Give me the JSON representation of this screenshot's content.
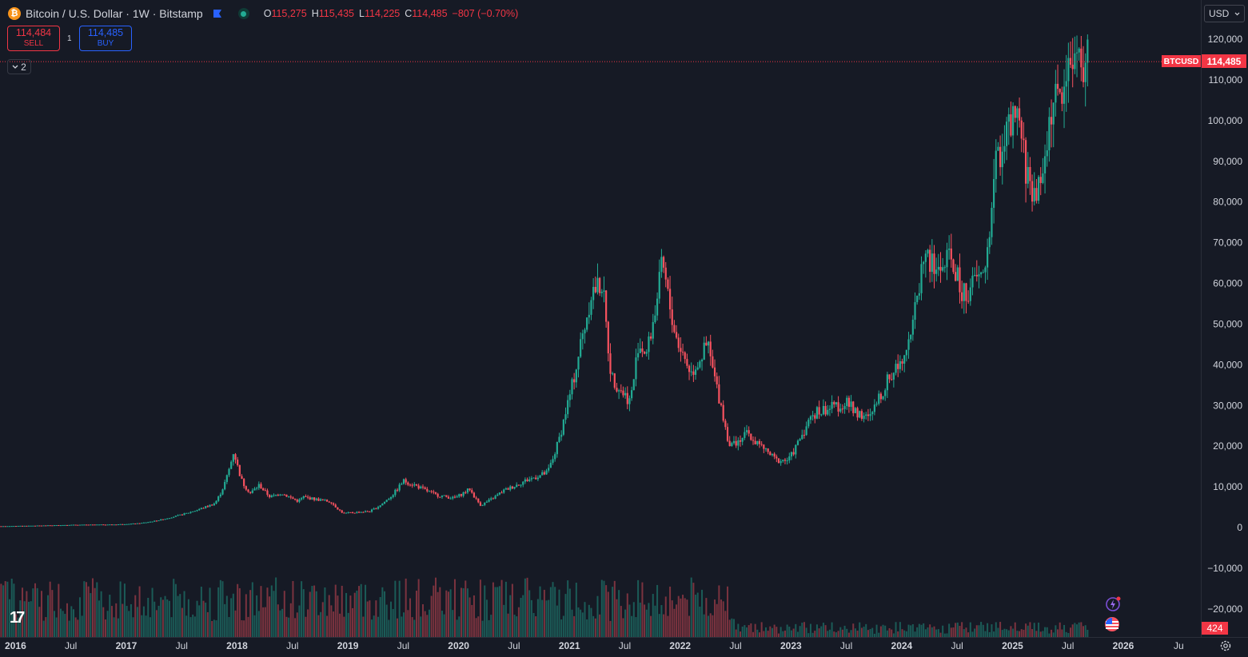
{
  "header": {
    "symbol_title": "Bitcoin / U.S. Dollar · 1W · Bitstamp",
    "coin_icon": "bitcoin-icon",
    "ohlc": {
      "o_label": "O",
      "o_value": "115,275",
      "h_label": "H",
      "h_value": "115,435",
      "l_label": "L",
      "l_value": "114,225",
      "c_label": "C",
      "c_value": "114,485",
      "change": "−807 (−0.70%)"
    }
  },
  "trade": {
    "sell_price": "114,484",
    "sell_label": "SELL",
    "buy_price": "114,485",
    "buy_label": "BUY",
    "spread": "1"
  },
  "indicators_toggle": "2",
  "currency_label": "USD",
  "last_price_label": "114,485",
  "symbol_tag": "BTCUSD",
  "volume_label": "424",
  "colors": {
    "up": "#22ab94",
    "down": "#f7525f",
    "bg": "#161a25",
    "grid_text": "#d1d4dc"
  },
  "chart_data": {
    "type": "candlestick",
    "interval": "1W",
    "ylim": [
      -25000,
      125000
    ],
    "y_ticks": [
      {
        "v": 120000,
        "label": "120,000"
      },
      {
        "v": 110000,
        "label": "110,000"
      },
      {
        "v": 100000,
        "label": "100,000"
      },
      {
        "v": 90000,
        "label": "90,000"
      },
      {
        "v": 80000,
        "label": "80,000"
      },
      {
        "v": 70000,
        "label": "70,000"
      },
      {
        "v": 60000,
        "label": "60,000"
      },
      {
        "v": 50000,
        "label": "50,000"
      },
      {
        "v": 40000,
        "label": "40,000"
      },
      {
        "v": 30000,
        "label": "30,000"
      },
      {
        "v": 20000,
        "label": "20,000"
      },
      {
        "v": 10000,
        "label": "10,000"
      },
      {
        "v": 0,
        "label": "0"
      },
      {
        "v": -10000,
        "label": "−10,000"
      },
      {
        "v": -20000,
        "label": "−20,000"
      }
    ],
    "x_ticks": [
      {
        "t": 2016.0,
        "label": "2016",
        "major": true
      },
      {
        "t": 2016.5,
        "label": "Jul",
        "major": false
      },
      {
        "t": 2017.0,
        "label": "2017",
        "major": true
      },
      {
        "t": 2017.5,
        "label": "Jul",
        "major": false
      },
      {
        "t": 2018.0,
        "label": "2018",
        "major": true
      },
      {
        "t": 2018.5,
        "label": "Jul",
        "major": false
      },
      {
        "t": 2019.0,
        "label": "2019",
        "major": true
      },
      {
        "t": 2019.5,
        "label": "Jul",
        "major": false
      },
      {
        "t": 2020.0,
        "label": "2020",
        "major": true
      },
      {
        "t": 2020.5,
        "label": "Jul",
        "major": false
      },
      {
        "t": 2021.0,
        "label": "2021",
        "major": true
      },
      {
        "t": 2021.5,
        "label": "Jul",
        "major": false
      },
      {
        "t": 2022.0,
        "label": "2022",
        "major": true
      },
      {
        "t": 2022.5,
        "label": "Jul",
        "major": false
      },
      {
        "t": 2023.0,
        "label": "2023",
        "major": true
      },
      {
        "t": 2023.5,
        "label": "Jul",
        "major": false
      },
      {
        "t": 2024.0,
        "label": "2024",
        "major": true
      },
      {
        "t": 2024.5,
        "label": "Jul",
        "major": false
      },
      {
        "t": 2025.0,
        "label": "2025",
        "major": true
      },
      {
        "t": 2025.5,
        "label": "Jul",
        "major": false
      },
      {
        "t": 2026.0,
        "label": "2026",
        "major": true
      },
      {
        "t": 2026.5,
        "label": "Ju",
        "major": false
      }
    ],
    "xlim": [
      2015.86,
      2026.7
    ],
    "last_price": 114485,
    "series_anchors": [
      {
        "t": 2015.87,
        "p": 330
      },
      {
        "t": 2016.5,
        "p": 650
      },
      {
        "t": 2016.9,
        "p": 750
      },
      {
        "t": 2017.1,
        "p": 1000
      },
      {
        "t": 2017.4,
        "p": 2500
      },
      {
        "t": 2017.6,
        "p": 4000
      },
      {
        "t": 2017.8,
        "p": 6000
      },
      {
        "t": 2017.97,
        "p": 19000
      },
      {
        "t": 2018.05,
        "p": 11000
      },
      {
        "t": 2018.12,
        "p": 8500
      },
      {
        "t": 2018.2,
        "p": 10500
      },
      {
        "t": 2018.3,
        "p": 7500
      },
      {
        "t": 2018.4,
        "p": 8500
      },
      {
        "t": 2018.55,
        "p": 6500
      },
      {
        "t": 2018.6,
        "p": 7500
      },
      {
        "t": 2018.85,
        "p": 6300
      },
      {
        "t": 2018.96,
        "p": 3500
      },
      {
        "t": 2019.2,
        "p": 4000
      },
      {
        "t": 2019.4,
        "p": 8000
      },
      {
        "t": 2019.5,
        "p": 11500
      },
      {
        "t": 2019.6,
        "p": 10500
      },
      {
        "t": 2019.8,
        "p": 8000
      },
      {
        "t": 2019.96,
        "p": 7200
      },
      {
        "t": 2020.1,
        "p": 9500
      },
      {
        "t": 2020.2,
        "p": 5500
      },
      {
        "t": 2020.4,
        "p": 9000
      },
      {
        "t": 2020.6,
        "p": 11500
      },
      {
        "t": 2020.8,
        "p": 13500
      },
      {
        "t": 2020.97,
        "p": 29000
      },
      {
        "t": 2021.1,
        "p": 45000
      },
      {
        "t": 2021.2,
        "p": 58000
      },
      {
        "t": 2021.3,
        "p": 60000
      },
      {
        "t": 2021.38,
        "p": 37000
      },
      {
        "t": 2021.55,
        "p": 31000
      },
      {
        "t": 2021.62,
        "p": 45000
      },
      {
        "t": 2021.7,
        "p": 43000
      },
      {
        "t": 2021.84,
        "p": 65000
      },
      {
        "t": 2021.96,
        "p": 47000
      },
      {
        "t": 2022.1,
        "p": 38000
      },
      {
        "t": 2022.25,
        "p": 45000
      },
      {
        "t": 2022.37,
        "p": 30000
      },
      {
        "t": 2022.45,
        "p": 20000
      },
      {
        "t": 2022.6,
        "p": 23000
      },
      {
        "t": 2022.75,
        "p": 19500
      },
      {
        "t": 2022.87,
        "p": 16500
      },
      {
        "t": 2022.98,
        "p": 16600
      },
      {
        "t": 2023.1,
        "p": 23000
      },
      {
        "t": 2023.2,
        "p": 28000
      },
      {
        "t": 2023.3,
        "p": 29000
      },
      {
        "t": 2023.5,
        "p": 30500
      },
      {
        "t": 2023.7,
        "p": 26500
      },
      {
        "t": 2023.85,
        "p": 35000
      },
      {
        "t": 2024.0,
        "p": 42000
      },
      {
        "t": 2024.1,
        "p": 50000
      },
      {
        "t": 2024.2,
        "p": 68000
      },
      {
        "t": 2024.3,
        "p": 63000
      },
      {
        "t": 2024.45,
        "p": 66000
      },
      {
        "t": 2024.55,
        "p": 57000
      },
      {
        "t": 2024.65,
        "p": 60000
      },
      {
        "t": 2024.75,
        "p": 63000
      },
      {
        "t": 2024.85,
        "p": 90000
      },
      {
        "t": 2024.95,
        "p": 97000
      },
      {
        "t": 2025.05,
        "p": 100000
      },
      {
        "t": 2025.15,
        "p": 84000
      },
      {
        "t": 2025.25,
        "p": 83000
      },
      {
        "t": 2025.35,
        "p": 103000
      },
      {
        "t": 2025.45,
        "p": 107000
      },
      {
        "t": 2025.55,
        "p": 118000
      },
      {
        "t": 2025.62,
        "p": 113000
      },
      {
        "t": 2025.68,
        "p": 114485
      }
    ]
  }
}
